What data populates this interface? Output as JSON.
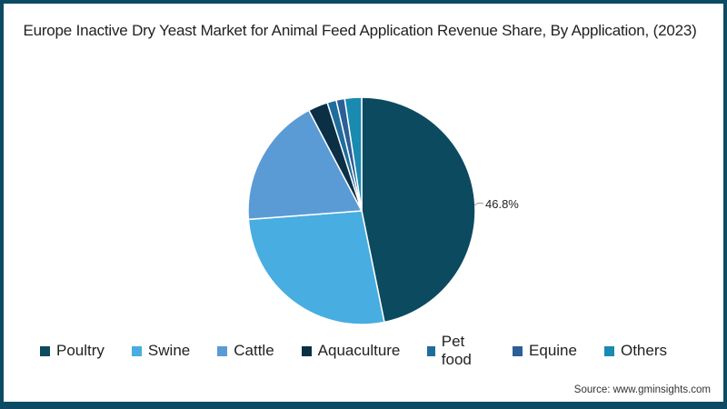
{
  "title": "Europe Inactive Dry Yeast Market for Animal Feed Application Revenue Share, By Application, (2023)",
  "source": "Source: www.gminsights.com",
  "colors": {
    "frame": "#0d4a63",
    "background": "#ffffff"
  },
  "chart_data": {
    "type": "pie",
    "title": "Europe Inactive Dry Yeast Market for Animal Feed Application Revenue Share, By Application, (2023)",
    "categories": [
      "Poultry",
      "Swine",
      "Cattle",
      "Aquaculture",
      "Pet food",
      "Equine",
      "Others"
    ],
    "values": [
      46.8,
      27.0,
      18.5,
      2.8,
      1.3,
      1.2,
      2.4
    ],
    "colors": [
      "#0c4a60",
      "#48ade0",
      "#5b9bd5",
      "#0b2f45",
      "#1f6d9c",
      "#2b5f96",
      "#1a8ab0"
    ],
    "annotations": [
      {
        "category": "Poultry",
        "text": "46.8%"
      }
    ],
    "legend_position": "bottom",
    "start_angle": "12 o'clock, clockwise"
  },
  "legend": [
    {
      "label": "Poultry",
      "color": "#0c4a60"
    },
    {
      "label": "Swine",
      "color": "#48ade0"
    },
    {
      "label": "Cattle",
      "color": "#5b9bd5"
    },
    {
      "label": "Aquaculture",
      "color": "#0b2f45"
    },
    {
      "label": "Pet food",
      "color": "#1f6d9c"
    },
    {
      "label": "Equine",
      "color": "#2b5f96"
    },
    {
      "label": "Others",
      "color": "#1a8ab0"
    }
  ]
}
